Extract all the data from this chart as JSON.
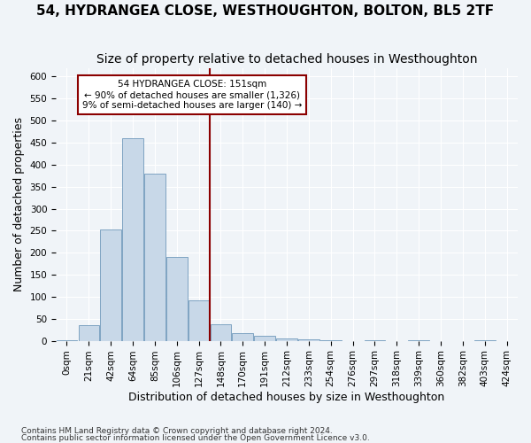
{
  "title": "54, HYDRANGEA CLOSE, WESTHOUGHTON, BOLTON, BL5 2TF",
  "subtitle": "Size of property relative to detached houses in Westhoughton",
  "xlabel": "Distribution of detached houses by size in Westhoughton",
  "ylabel": "Number of detached properties",
  "footnote1": "Contains HM Land Registry data © Crown copyright and database right 2024.",
  "footnote2": "Contains public sector information licensed under the Open Government Licence v3.0.",
  "bar_labels": [
    "0sqm",
    "21sqm",
    "42sqm",
    "64sqm",
    "85sqm",
    "106sqm",
    "127sqm",
    "148sqm",
    "170sqm",
    "191sqm",
    "212sqm",
    "233sqm",
    "254sqm",
    "276sqm",
    "297sqm",
    "318sqm",
    "339sqm",
    "360sqm",
    "382sqm",
    "403sqm",
    "424sqm"
  ],
  "bar_values": [
    2,
    35,
    252,
    460,
    380,
    190,
    92,
    37,
    17,
    11,
    5,
    3,
    1,
    0,
    2,
    0,
    1,
    0,
    0,
    1,
    0
  ],
  "bar_color": "#c8d8e8",
  "bar_edge_color": "#5a8ab0",
  "ylim": [
    0,
    620
  ],
  "yticks": [
    0,
    50,
    100,
    150,
    200,
    250,
    300,
    350,
    400,
    450,
    500,
    550,
    600
  ],
  "property_bin_index": 7,
  "vline_color": "#8b0000",
  "annotation_line1": "54 HYDRANGEA CLOSE: 151sqm",
  "annotation_line2": "← 90% of detached houses are smaller (1,326)",
  "annotation_line3": "9% of semi-detached houses are larger (140) →",
  "annotation_box_color": "#ffffff",
  "annotation_border_color": "#8b0000",
  "bg_color": "#f0f4f8",
  "grid_color": "#ffffff",
  "title_fontsize": 11,
  "subtitle_fontsize": 10,
  "tick_fontsize": 7.5,
  "label_fontsize": 9
}
